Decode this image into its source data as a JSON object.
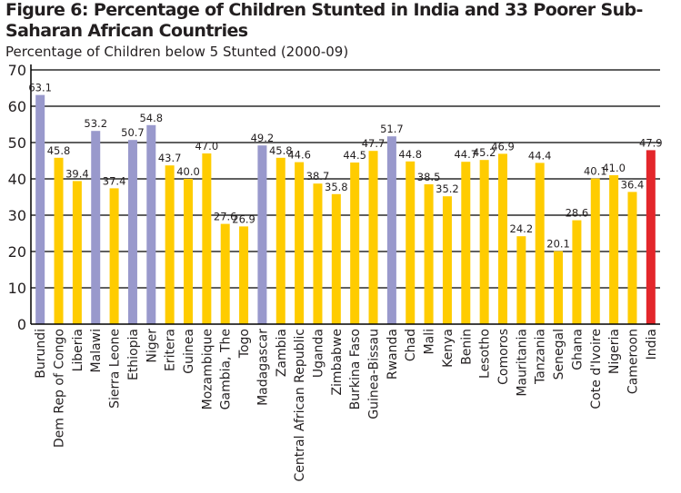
{
  "header": {
    "title": "Figure 6: Percentage of Children Stunted in India and 33 Poorer Sub-Saharan African Countries",
    "subtitle": "Percentage of Children below 5 Stunted (2000-09)"
  },
  "colors": {
    "highlight": "#9999cc",
    "standard": "#ffcc00",
    "india": "#e3262b",
    "grid": "#000000",
    "background": "#ffffff"
  },
  "chart_data": {
    "type": "bar",
    "title": "Figure 6: Percentage of Children Stunted in India and 33 Poorer Sub-Saharan African Countries",
    "ylabel": "Percentage of Children below 5 Stunted (2000-09)",
    "xlabel": "",
    "ylim": [
      0,
      70
    ],
    "yticks": [
      0,
      10,
      20,
      30,
      40,
      50,
      60,
      70
    ],
    "grid": true,
    "categories": [
      "Burundi",
      "Dem Rep of Congo",
      "Liberia",
      "Malawi",
      "Sierra Leone",
      "Ethiopia",
      "Niger",
      "Eritera",
      "Guinea",
      "Mozambique",
      "Gambia, The",
      "Togo",
      "Madagascar",
      "Zambia",
      "Central African Republic",
      "Uganda",
      "Zimbabwe",
      "Burkina Faso",
      "Guinea-Bissau",
      "Rwanda",
      "Chad",
      "Mali",
      "Kenya",
      "Benin",
      "Lesotho",
      "Comoros",
      "Mauritania",
      "Tanzania",
      "Senegal",
      "Ghana",
      "Cote d'Ivoire",
      "Nigeria",
      "Cameroon",
      "India"
    ],
    "values": [
      63.1,
      45.8,
      39.4,
      53.2,
      37.4,
      50.7,
      54.8,
      43.7,
      40.0,
      47.0,
      27.6,
      26.9,
      49.2,
      45.8,
      44.6,
      38.7,
      35.8,
      44.5,
      47.7,
      51.7,
      44.8,
      38.5,
      35.2,
      44.7,
      45.2,
      46.9,
      24.2,
      44.4,
      20.1,
      28.6,
      40.1,
      41.0,
      36.4,
      47.9
    ],
    "value_labels": [
      "63.1",
      "45.8",
      "39.4",
      "53.2",
      "37.4",
      "50.7",
      "54.8",
      "43.7",
      "40.0",
      "47.0",
      "27.6",
      "26.9",
      "49.2",
      "45.8",
      "44.6",
      "38.7",
      "35.8",
      "44.5",
      "47.7",
      "51.7",
      "44.8",
      "38.5",
      "35.2",
      "44.7",
      "45.2",
      "46.9",
      "24.2",
      "44.4",
      "20.1",
      "28.6",
      "40.1",
      "41.0",
      "36.4",
      "47.9"
    ],
    "bar_colors": [
      "highlight",
      "standard",
      "standard",
      "highlight",
      "standard",
      "highlight",
      "highlight",
      "standard",
      "standard",
      "standard",
      "standard",
      "standard",
      "highlight",
      "standard",
      "standard",
      "standard",
      "standard",
      "standard",
      "standard",
      "highlight",
      "standard",
      "standard",
      "standard",
      "standard",
      "standard",
      "standard",
      "standard",
      "standard",
      "standard",
      "standard",
      "standard",
      "standard",
      "standard",
      "india"
    ]
  }
}
